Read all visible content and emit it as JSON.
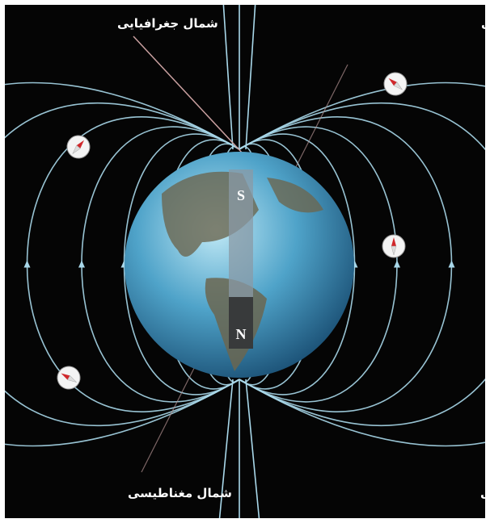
{
  "labels": {
    "top_left": "شمال جغرافیایی",
    "top_right": "جنوب مغناطیسی",
    "bottom_left": "شمال مغناطیسی",
    "bottom_right": "جنوب جغرافیایی"
  },
  "magnet": {
    "south": "S",
    "north": "N"
  }
}
